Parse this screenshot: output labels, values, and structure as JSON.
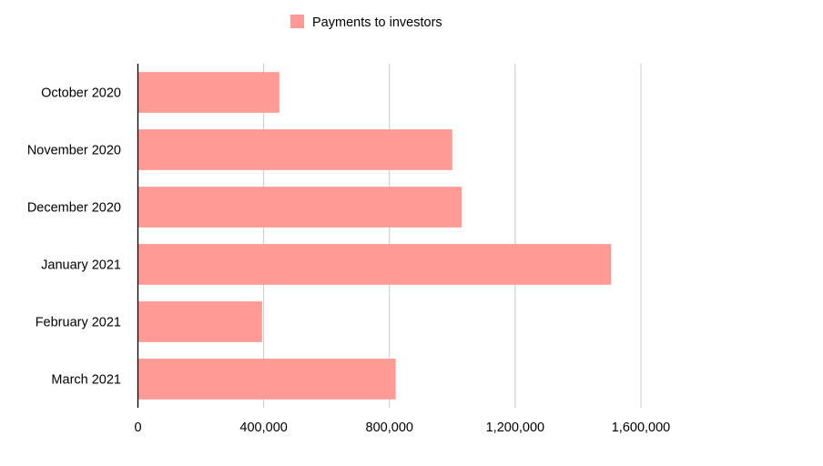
{
  "chart_data": {
    "type": "bar",
    "orientation": "horizontal",
    "categories": [
      "October 2020",
      "November 2020",
      "December 2020",
      "January 2021",
      "February 2021",
      "March 2021"
    ],
    "series": [
      {
        "name": "Payments to investors",
        "color": "#FF9A94",
        "values": [
          450000,
          1000000,
          1030000,
          1505000,
          395000,
          820000
        ]
      }
    ],
    "title": "",
    "xlabel": "",
    "ylabel": "",
    "xlim": [
      0,
      1600000
    ],
    "xticks": [
      0,
      400000,
      800000,
      1200000,
      1600000
    ],
    "xtick_labels": [
      "0",
      "400,000",
      "800,000",
      "1,200,000",
      "1,600,000"
    ],
    "grid": "vertical",
    "legend_position": "top"
  }
}
